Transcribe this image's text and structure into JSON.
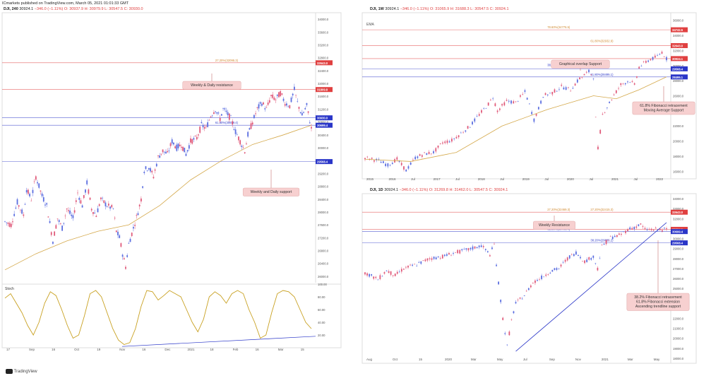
{
  "header": {
    "published": "ICmarkets published on TradingView.com, March 05, 2021 01:01:33 GMT"
  },
  "footer": {
    "brand": "TradingView"
  },
  "colors": {
    "candle_up": "#5b6ee0",
    "candle_down": "#e05a7a",
    "ema": "#d4a84a",
    "resistance": "#e04040",
    "support": "#2a36c8",
    "stoch": "#c8a020",
    "annotation_bg": "#f7d0d0"
  },
  "chart_data": [
    {
      "type": "candlestick",
      "panel": "left-240",
      "title": {
        "sym": "DJI, 240",
        "last": "30924.1",
        "change": "−346.0 (−1.11%)",
        "o": "O: 30937.9",
        "h": "H: 30979.9",
        "l": "L: 30547.5",
        "c": "C: 30930.0"
      },
      "y_axis_labels": [
        "34000.0",
        "33600.0",
        "33200.0",
        "32800.0",
        "32400.0",
        "32000.0",
        "31600.0",
        "31200.0",
        "30800.0",
        "30400.0",
        "30000.0",
        "29600.0",
        "29200.0",
        "28800.0",
        "28400.0",
        "28000.0",
        "27600.0",
        "27200.0",
        "26800.0",
        "26400.0",
        "26000.0"
      ],
      "ylim": [
        25800,
        34200
      ],
      "x_labels": [
        "17",
        "Sep",
        "16",
        "Oct",
        "19",
        "Nov",
        "16",
        "Dec",
        "2021",
        "18",
        "Feb",
        "16",
        "Mar",
        "15"
      ],
      "price_tags": [
        {
          "value": "32643.0",
          "kind": "resistance"
        },
        {
          "value": "31809.8",
          "kind": "resistance"
        },
        {
          "value": "30930.0",
          "kind": "support"
        },
        {
          "value": "30699.4",
          "kind": "support"
        },
        {
          "value": "29568.4",
          "kind": "support"
        }
      ],
      "fib_labels": [
        {
          "text": "27.20%(32095.3)",
          "y": 32643
        },
        {
          "text": "61.80%(30699.4)",
          "y": 30699.4
        }
      ],
      "annotations": [
        {
          "text": "Weekly & Daily resistance"
        },
        {
          "text": "Weekly and Daily support"
        }
      ],
      "series": [
        {
          "name": "DJI",
          "path": [
            [
              0,
              27700
            ],
            [
              4,
              27600
            ],
            [
              8,
              28300
            ],
            [
              12,
              27900
            ],
            [
              14,
              28700
            ],
            [
              17,
              28400
            ],
            [
              20,
              29100
            ],
            [
              24,
              28500
            ],
            [
              27,
              28200
            ],
            [
              31,
              27100
            ],
            [
              34,
              27800
            ],
            [
              37,
              27500
            ],
            [
              40,
              28100
            ],
            [
              44,
              27800
            ],
            [
              47,
              28600
            ],
            [
              50,
              28200
            ],
            [
              53,
              28900
            ],
            [
              56,
              28100
            ],
            [
              59,
              27900
            ],
            [
              62,
              28400
            ],
            [
              66,
              28200
            ],
            [
              70,
              28100
            ],
            [
              72,
              27400
            ],
            [
              74,
              27200
            ],
            [
              76,
              26700
            ],
            [
              78,
              26300
            ],
            [
              80,
              27000
            ],
            [
              83,
              27500
            ],
            [
              86,
              28000
            ],
            [
              88,
              28400
            ],
            [
              90,
              29300
            ],
            [
              93,
              29400
            ],
            [
              96,
              29100
            ],
            [
              99,
              29700
            ],
            [
              102,
              29900
            ],
            [
              105,
              29800
            ],
            [
              108,
              30200
            ],
            [
              111,
              30000
            ],
            [
              114,
              30100
            ],
            [
              117,
              29800
            ],
            [
              120,
              30200
            ],
            [
              124,
              30300
            ],
            [
              127,
              30700
            ],
            [
              130,
              30600
            ],
            [
              133,
              31000
            ],
            [
              136,
              31200
            ],
            [
              139,
              30900
            ],
            [
              141,
              31200
            ],
            [
              143,
              31100
            ],
            [
              146,
              30900
            ],
            [
              149,
              30500
            ],
            [
              152,
              30200
            ],
            [
              155,
              29900
            ],
            [
              157,
              30400
            ],
            [
              160,
              30800
            ],
            [
              163,
              31200
            ],
            [
              166,
              31400
            ],
            [
              169,
              31200
            ],
            [
              172,
              31600
            ],
            [
              175,
              31500
            ],
            [
              178,
              31700
            ],
            [
              181,
              31400
            ],
            [
              184,
              31300
            ],
            [
              187,
              31800
            ],
            [
              189,
              31400
            ],
            [
              192,
              31000
            ],
            [
              195,
              31300
            ],
            [
              198,
              30600
            ]
          ]
        },
        {
          "name": "EMA",
          "path": [
            [
              0,
              26200
            ],
            [
              20,
              26700
            ],
            [
              40,
              27100
            ],
            [
              60,
              27400
            ],
            [
              80,
              27600
            ],
            [
              100,
              28200
            ],
            [
              120,
              29000
            ],
            [
              140,
              29600
            ],
            [
              160,
              30100
            ],
            [
              180,
              30400
            ],
            [
              198,
              30700
            ]
          ]
        }
      ],
      "stoch": {
        "label": "Stoch",
        "y_axis_labels": [
          "100.00",
          "80.00",
          "60.00",
          "40.00",
          "20.00"
        ],
        "ylim": [
          0,
          100
        ],
        "values": [
          78,
          85,
          70,
          55,
          35,
          20,
          40,
          70,
          88,
          82,
          60,
          35,
          15,
          20,
          50,
          85,
          90,
          80,
          55,
          30,
          12,
          5,
          8,
          30,
          65,
          90,
          88,
          75,
          82,
          90,
          85,
          80,
          60,
          40,
          25,
          45,
          80,
          88,
          82,
          70,
          85,
          90,
          85,
          60,
          40,
          15,
          20,
          55,
          85,
          90,
          88,
          80,
          60,
          40,
          30
        ]
      }
    },
    {
      "type": "candlestick",
      "panel": "right-weekly",
      "title": {
        "sym": "DJI, 1W",
        "last": "30924.1",
        "change": "−346.0 (−1.11%)",
        "o": "O: 31065.9",
        "h": "H: 31688.3",
        "l": "L: 30547.5",
        "c": "C: 30924.1"
      },
      "legend": "EMA",
      "y_axis_labels": [
        "36000.0",
        "34000.0",
        "32000.0",
        "30000.0",
        "28000.0",
        "26000.0",
        "24000.0",
        "22000.0",
        "20000.0",
        "18000.0",
        "16000.0"
      ],
      "ylim": [
        15000,
        37000
      ],
      "x_labels": [
        "2015",
        "2016",
        "Jul",
        "2017",
        "Jul",
        "2018",
        "Jul",
        "2019",
        "Jul",
        "2020",
        "Jul",
        "2021",
        "Jul",
        "2022"
      ],
      "price_tags": [
        {
          "value": "34742.5",
          "kind": "resistance"
        },
        {
          "value": "32643.0",
          "kind": "resistance"
        },
        {
          "value": "30924.1",
          "kind": "resistance"
        },
        {
          "value": "29568.4",
          "kind": "support"
        },
        {
          "value": "28495.1",
          "kind": "support"
        }
      ],
      "fib_labels": [
        {
          "text": "78.60%(34776.5)",
          "y": 34776
        },
        {
          "text": "61.80%(32932.9)",
          "y": 32932
        },
        {
          "text": "38.20%(29768.9)",
          "y": 29768
        },
        {
          "text": "61.80%(28495.1)",
          "y": 28495
        }
      ],
      "annotations": [
        {
          "text": "Graphical overlap Support"
        },
        {
          "text": "61.8% Fibonacci retracement\nMoving Average Support"
        }
      ],
      "series": [
        {
          "name": "DJI",
          "path": [
            [
              0,
              17800
            ],
            [
              6,
              17400
            ],
            [
              10,
              16800
            ],
            [
              14,
              17600
            ],
            [
              18,
              16100
            ],
            [
              22,
              17800
            ],
            [
              26,
              18300
            ],
            [
              30,
              18500
            ],
            [
              34,
              19800
            ],
            [
              38,
              20100
            ],
            [
              42,
              21000
            ],
            [
              46,
              22000
            ],
            [
              50,
              23500
            ],
            [
              54,
              24900
            ],
            [
              56,
              25800
            ],
            [
              58,
              24000
            ],
            [
              62,
              25300
            ],
            [
              66,
              25100
            ],
            [
              70,
              26500
            ],
            [
              72,
              24800
            ],
            [
              74,
              22800
            ],
            [
              76,
              24300
            ],
            [
              78,
              26000
            ],
            [
              82,
              26400
            ],
            [
              86,
              27200
            ],
            [
              90,
              26800
            ],
            [
              94,
              28300
            ],
            [
              98,
              29200
            ],
            [
              100,
              28500
            ],
            [
              101,
              23000
            ],
            [
              102,
              19000
            ],
            [
              104,
              23500
            ],
            [
              108,
              25600
            ],
            [
              112,
              27500
            ],
            [
              116,
              28000
            ],
            [
              118,
              27400
            ],
            [
              120,
              29800
            ],
            [
              124,
              30700
            ],
            [
              128,
              31200
            ],
            [
              130,
              31800
            ],
            [
              132,
              30900
            ]
          ]
        },
        {
          "name": "EMA",
          "path": [
            [
              0,
              17600
            ],
            [
              20,
              17300
            ],
            [
              40,
              18500
            ],
            [
              60,
              22000
            ],
            [
              80,
              24200
            ],
            [
              100,
              26000
            ],
            [
              110,
              25600
            ],
            [
              120,
              26800
            ],
            [
              132,
              28500
            ]
          ]
        }
      ]
    },
    {
      "type": "candlestick",
      "panel": "right-daily",
      "title": {
        "sym": "DJI, 1D",
        "last": "30924.1",
        "change": "−346.0 (−1.11%)",
        "o": "O: 31269.8",
        "h": "H: 31462.0",
        "l": "L: 30547.5",
        "c": "C: 30924.1"
      },
      "y_axis_labels": [
        "34000.0",
        "33000.0",
        "32000.0",
        "31000.0",
        "30000.0",
        "29000.0",
        "28000.0",
        "27000.0",
        "26000.0",
        "25000.0",
        "24000.0",
        "23000.0",
        "22000.0",
        "21000.0",
        "20000.0",
        "19000.0",
        "18000.0"
      ],
      "ylim": [
        17500,
        34500
      ],
      "x_labels": [
        "Aug",
        "Oct",
        "15",
        "2020",
        "Mar",
        "May",
        "Jul",
        "Sep",
        "Nov",
        "2021",
        "Mar",
        "May"
      ],
      "price_tags": [
        {
          "value": "32643.0",
          "kind": "resistance"
        },
        {
          "value": "30924.1",
          "kind": "resistance"
        },
        {
          "value": "30699.4",
          "kind": "support"
        },
        {
          "value": "29568.4",
          "kind": "support"
        }
      ],
      "fib_labels": [
        {
          "text": "27.20%(32469.3)",
          "y": 32643
        },
        {
          "text": "27.20%(32415.3)",
          "y": 32643
        },
        {
          "text": "61.80%(30700.4)",
          "y": 30700
        },
        {
          "text": "38.20%(29685.2)",
          "y": 29568
        }
      ],
      "annotations": [
        {
          "text": "Weekly Resistance"
        },
        {
          "text": "38.2% Fibonacci retracement\n61.8% Fibonacci extension\nAscending trendline support"
        }
      ],
      "series": [
        {
          "name": "DJI",
          "path": [
            [
              0,
              26600
            ],
            [
              6,
              25900
            ],
            [
              10,
              26800
            ],
            [
              14,
              26300
            ],
            [
              18,
              27000
            ],
            [
              24,
              27400
            ],
            [
              30,
              28000
            ],
            [
              36,
              28200
            ],
            [
              42,
              28600
            ],
            [
              48,
              28900
            ],
            [
              54,
              29300
            ],
            [
              58,
              28400
            ],
            [
              60,
              29400
            ],
            [
              62,
              25500
            ],
            [
              64,
              22000
            ],
            [
              66,
              19200
            ],
            [
              68,
              21800
            ],
            [
              70,
              23500
            ],
            [
              74,
              24300
            ],
            [
              78,
              25600
            ],
            [
              82,
              26100
            ],
            [
              86,
              26700
            ],
            [
              90,
              27000
            ],
            [
              94,
              28000
            ],
            [
              98,
              28600
            ],
            [
              102,
              27700
            ],
            [
              106,
              28200
            ],
            [
              108,
              27000
            ],
            [
              110,
              29200
            ],
            [
              114,
              30100
            ],
            [
              118,
              30300
            ],
            [
              122,
              30900
            ],
            [
              126,
              31200
            ],
            [
              128,
              31400
            ],
            [
              130,
              30900
            ]
          ]
        },
        {
          "name": "Trendline",
          "path": [
            [
              70,
              18700
            ],
            [
              140,
              31600
            ]
          ]
        }
      ]
    }
  ]
}
